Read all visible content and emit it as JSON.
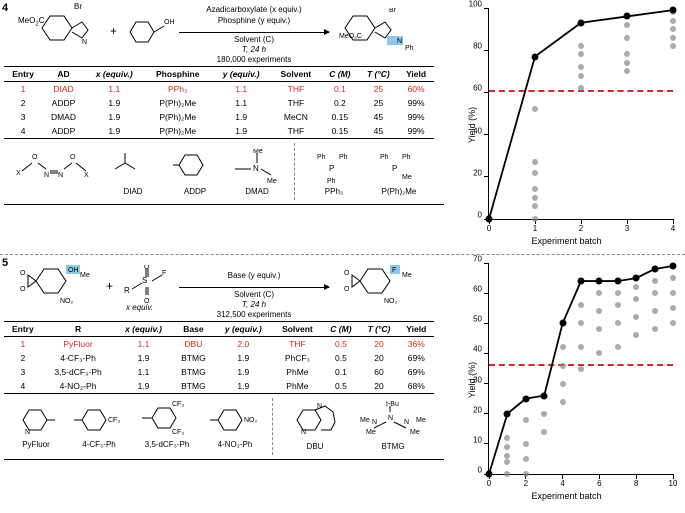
{
  "panel4": {
    "num": "4",
    "scheme": {
      "line1": "Azadicarboxylate (x equiv.)",
      "line2": "Phosphine (y equiv.)",
      "line3": "Solvent (C)",
      "line4": "T, 24 h",
      "line5": "180,000 experiments",
      "sm1": "MeO",
      "sm1b": "Br",
      "sm2": "OH",
      "prod": "MeO",
      "prodb": "Br",
      "prodc": "Ph",
      "plus": "+"
    },
    "headers": [
      "Entry",
      "AD",
      "x (equiv.)",
      "Phosphine",
      "y (equiv.)",
      "Solvent",
      "C (M)",
      "T (°C)",
      "Yield"
    ],
    "rows": [
      {
        "cells": [
          "1",
          "DIAD",
          "1.1",
          "PPh₃",
          "1.1",
          "THF",
          "0.1",
          "25",
          "60%"
        ],
        "red": true
      },
      {
        "cells": [
          "2",
          "ADDP",
          "1.9",
          "P(Ph)₂Me",
          "1.1",
          "THF",
          "0.2",
          "25",
          "99%"
        ],
        "red": false
      },
      {
        "cells": [
          "3",
          "DMAD",
          "1.9",
          "P(Ph)₂Me",
          "1.9",
          "MeCN",
          "0.15",
          "45",
          "99%"
        ],
        "red": false
      },
      {
        "cells": [
          "4",
          "ADDP",
          "1.9",
          "P(Ph)₂Me",
          "1.9",
          "THF",
          "0.15",
          "45",
          "99%"
        ],
        "red": false
      }
    ],
    "structs": [
      "DIAD",
      "ADDP",
      "DMAD",
      "PPh₃",
      "P(Ph)₂Me"
    ],
    "chart": {
      "ylabel": "Yield (%)",
      "xlabel": "Experiment batch",
      "ylim": [
        0,
        100
      ],
      "ytick_step": 20,
      "xlim": [
        0,
        4
      ],
      "xtick_step": 1,
      "dash_y": 60,
      "dash_color": "#d62728",
      "line_color": "#000000",
      "solid_points": [
        [
          0,
          0
        ],
        [
          1,
          77
        ],
        [
          2,
          93
        ],
        [
          3,
          96
        ],
        [
          4,
          99
        ]
      ],
      "grey_points": [
        [
          1,
          0
        ],
        [
          1,
          6
        ],
        [
          1,
          10
        ],
        [
          1,
          14
        ],
        [
          1,
          22
        ],
        [
          1,
          27
        ],
        [
          1,
          52
        ],
        [
          1,
          77
        ],
        [
          2,
          62
        ],
        [
          2,
          68
        ],
        [
          2,
          72
        ],
        [
          2,
          78
        ],
        [
          2,
          82
        ],
        [
          2,
          93
        ],
        [
          3,
          70
        ],
        [
          3,
          74
        ],
        [
          3,
          78
        ],
        [
          3,
          86
        ],
        [
          3,
          92
        ],
        [
          3,
          96
        ],
        [
          4,
          82
        ],
        [
          4,
          86
        ],
        [
          4,
          90
        ],
        [
          4,
          94
        ],
        [
          4,
          98
        ],
        [
          4,
          99
        ]
      ]
    }
  },
  "panel5": {
    "num": "5",
    "scheme": {
      "line1": "Base (y equiv.)",
      "line3": "Solvent (C)",
      "line4": "T, 24 h",
      "line5": "312,500 experiments",
      "sm1": "OH",
      "sm1b": "NO₂",
      "sm1c": "Me",
      "sm2a": "R",
      "sm2b": "S",
      "sm2c": "F",
      "sm2d": "x equiv.",
      "prod": "F",
      "prodb": "Me",
      "prodc": "NO₂",
      "plus": "+"
    },
    "headers": [
      "Entry",
      "R",
      "x (equiv.)",
      "Base",
      "y (equiv.)",
      "Solvent",
      "C (M)",
      "T (°C)",
      "Yield"
    ],
    "rows": [
      {
        "cells": [
          "1",
          "PyFluor",
          "1.1",
          "DBU",
          "2.0",
          "THF",
          "0.5",
          "20",
          "36%"
        ],
        "red": true
      },
      {
        "cells": [
          "2",
          "4-CF₃-Ph",
          "1.9",
          "BTMG",
          "1.9",
          "PhCF₃",
          "0.5",
          "20",
          "69%"
        ],
        "red": false
      },
      {
        "cells": [
          "3",
          "3,5-dCF₃-Ph",
          "1.1",
          "BTMG",
          "1.9",
          "PhMe",
          "0.1",
          "60",
          "69%"
        ],
        "red": false
      },
      {
        "cells": [
          "4",
          "4-NO₂-Ph",
          "1.9",
          "BTMG",
          "1.9",
          "PhMe",
          "0.5",
          "20",
          "68%"
        ],
        "red": false
      }
    ],
    "structs": [
      "PyFluor",
      "4-CF₃-Ph",
      "3,5-dCF₃-Ph",
      "4-NO₂-Ph",
      "DBU",
      "BTMG"
    ],
    "chart": {
      "ylabel": "Yield (%)",
      "xlabel": "Experiment batch",
      "ylim": [
        0,
        70
      ],
      "ytick_step": 10,
      "xlim": [
        0,
        10
      ],
      "xtick_step": 2,
      "dash_y": 36,
      "dash_color": "#d62728",
      "line_color": "#000000",
      "solid_points": [
        [
          0,
          0
        ],
        [
          1,
          20
        ],
        [
          2,
          25
        ],
        [
          3,
          26
        ],
        [
          4,
          50
        ],
        [
          5,
          64
        ],
        [
          6,
          64
        ],
        [
          7,
          64
        ],
        [
          8,
          65
        ],
        [
          9,
          68
        ],
        [
          10,
          69
        ]
      ],
      "grey_points": [
        [
          1,
          0
        ],
        [
          1,
          4
        ],
        [
          1,
          6
        ],
        [
          1,
          9
        ],
        [
          1,
          12
        ],
        [
          1,
          20
        ],
        [
          2,
          0
        ],
        [
          2,
          5
        ],
        [
          2,
          10
        ],
        [
          2,
          18
        ],
        [
          2,
          25
        ],
        [
          3,
          14
        ],
        [
          3,
          20
        ],
        [
          3,
          26
        ],
        [
          4,
          24
        ],
        [
          4,
          30
        ],
        [
          4,
          36
        ],
        [
          4,
          42
        ],
        [
          4,
          50
        ],
        [
          5,
          35
        ],
        [
          5,
          42
        ],
        [
          5,
          50
        ],
        [
          5,
          56
        ],
        [
          5,
          64
        ],
        [
          6,
          40
        ],
        [
          6,
          48
        ],
        [
          6,
          54
        ],
        [
          6,
          60
        ],
        [
          6,
          64
        ],
        [
          7,
          42
        ],
        [
          7,
          50
        ],
        [
          7,
          56
        ],
        [
          7,
          60
        ],
        [
          7,
          64
        ],
        [
          8,
          46
        ],
        [
          8,
          52
        ],
        [
          8,
          58
        ],
        [
          8,
          62
        ],
        [
          8,
          65
        ],
        [
          9,
          48
        ],
        [
          9,
          54
        ],
        [
          9,
          60
        ],
        [
          9,
          64
        ],
        [
          9,
          68
        ],
        [
          10,
          50
        ],
        [
          10,
          55
        ],
        [
          10,
          60
        ],
        [
          10,
          65
        ],
        [
          10,
          69
        ]
      ]
    }
  }
}
